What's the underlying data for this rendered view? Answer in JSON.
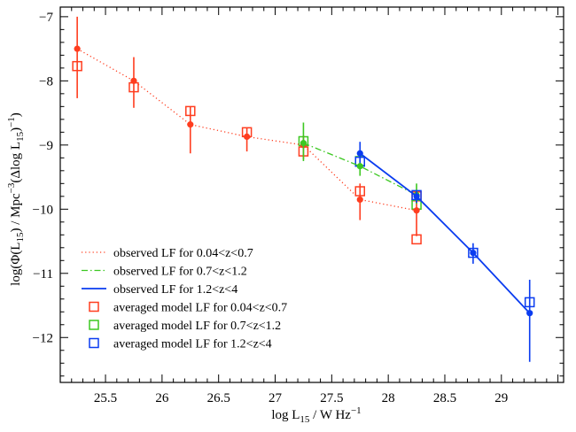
{
  "chart_data": {
    "type": "line",
    "title": "",
    "xlabel": {
      "base": "log L",
      "sub": "15",
      "rest": " / W Hz",
      "sup": "−1"
    },
    "ylabel": {
      "p1": "log(Φ(L",
      "s1": "15",
      "p2": ") / Mpc",
      "s2": "−3",
      "p3": "(Δlog L",
      "s3": "15",
      "p4": ")",
      "s4": "−1",
      "p5": ")"
    },
    "xlim": [
      25.1,
      29.55
    ],
    "ylim": [
      -12.7,
      -6.85
    ],
    "xticks": [
      25.5,
      26,
      26.5,
      27,
      27.5,
      28,
      28.5,
      29
    ],
    "xtick_labels": [
      "25.5",
      "26",
      "26.5",
      "27",
      "27.5",
      "28",
      "28.5",
      "29"
    ],
    "yticks": [
      -7,
      -8,
      -9,
      -10,
      -11,
      -12
    ],
    "ytick_labels": [
      "−7",
      "−8",
      "−9",
      "−10",
      "−11",
      "−12"
    ],
    "legend_position": "bottom-left",
    "series": [
      {
        "name": "observed LF for 0.04<z<0.7",
        "kind": "observed",
        "style": "dotted",
        "color": "#ff3d1f",
        "x": [
          25.25,
          25.75,
          26.25,
          26.75,
          27.25,
          27.75,
          28.25
        ],
        "y": [
          -7.5,
          -8.0,
          -8.68,
          -8.87,
          -9.0,
          -9.85,
          -10.02
        ],
        "yerr_low": [
          -8.27,
          -8.42,
          -9.13,
          -9.1,
          -9.22,
          -10.17,
          -10.42
        ],
        "yerr_high": [
          -7.0,
          -7.63,
          -8.4,
          -8.74,
          -8.85,
          -9.6,
          -9.75
        ]
      },
      {
        "name": "observed LF for 0.7<z<1.2",
        "kind": "observed",
        "style": "dashdot",
        "color": "#3cc821",
        "x": [
          27.25,
          27.75,
          28.25
        ],
        "y": [
          -8.97,
          -9.33,
          -9.78
        ],
        "yerr_low": [
          -9.25,
          -9.48,
          -9.92
        ],
        "yerr_high": [
          -8.65,
          -9.15,
          -9.6
        ]
      },
      {
        "name": "observed LF for 1.2<z<4",
        "kind": "observed",
        "style": "solid",
        "color": "#0a3cf0",
        "x": [
          27.75,
          28.25,
          28.75,
          29.25
        ],
        "y": [
          -9.13,
          -9.8,
          -10.68,
          -11.62
        ],
        "yerr_low": [
          -9.28,
          -9.9,
          -10.85,
          -12.38
        ],
        "yerr_high": [
          -8.95,
          -9.7,
          -10.53,
          -11.1
        ]
      },
      {
        "name": "averaged model LF for 0.04<z<0.7",
        "kind": "model",
        "color": "#ff3d1f",
        "x": [
          25.25,
          25.75,
          26.25,
          26.75,
          27.25,
          27.75,
          28.25,
          28.25
        ],
        "y": [
          -7.77,
          -8.1,
          -8.47,
          -8.8,
          -9.1,
          -9.72,
          -10.47,
          -9.8
        ]
      },
      {
        "name": "averaged model LF for 0.7<z<1.2",
        "kind": "model",
        "color": "#3cc821",
        "x": [
          27.25,
          27.75,
          28.25
        ],
        "y": [
          -8.94,
          -9.25,
          -9.93
        ]
      },
      {
        "name": "averaged model LF for 1.2<z<4",
        "kind": "model",
        "color": "#0a3cf0",
        "x": [
          27.75,
          28.25,
          28.75,
          29.25
        ],
        "y": [
          -9.26,
          -9.78,
          -10.68,
          -11.45
        ]
      }
    ]
  }
}
